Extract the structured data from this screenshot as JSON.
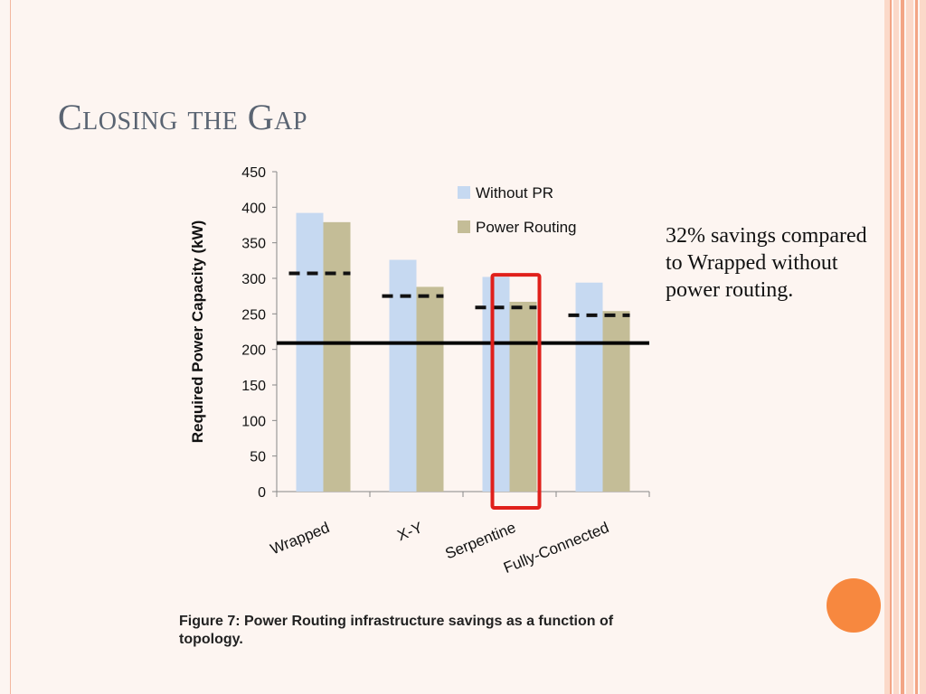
{
  "slide": {
    "title": "Closing the Gap",
    "note": "32% savings compared to Wrapped without power routing.",
    "caption": "Figure 7: Power Routing infrastructure savings as a function of topology.",
    "colors": {
      "background": "#fdf5f1",
      "stripe_dark": "#f3a585",
      "stripe_light": "#fbd9c9",
      "circle": "#f7883f"
    }
  },
  "chart_data": {
    "type": "bar",
    "ylabel": "Required Power Capacity (kW)",
    "xlabel": "",
    "ylim": [
      0,
      450
    ],
    "yticks": [
      0,
      50,
      100,
      150,
      200,
      250,
      300,
      350,
      400,
      450
    ],
    "categories": [
      "Wrapped",
      "X-Y",
      "Serpentine",
      "Fully-Connected"
    ],
    "series": [
      {
        "name": "Without PR",
        "color": "#c6d9f1",
        "values": [
          392,
          326,
          302,
          294
        ]
      },
      {
        "name": "Power Routing",
        "color": "#c4bd97",
        "values": [
          379,
          288,
          267,
          254
        ]
      }
    ],
    "dashed_levels": [
      307,
      275,
      259,
      248
    ],
    "reference_line": 209,
    "highlight_category": "Serpentine",
    "highlight_color": "#e0201b",
    "legend_position": "top-right",
    "grid": false
  }
}
